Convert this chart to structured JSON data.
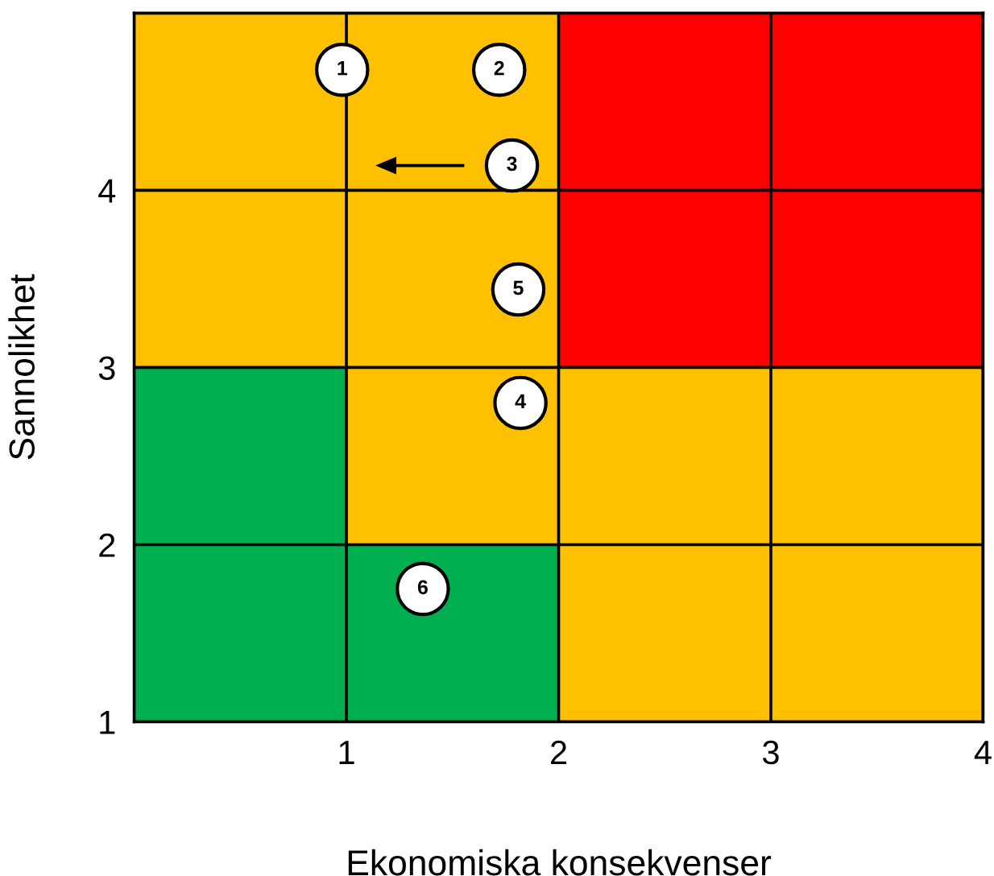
{
  "chart_data": {
    "type": "scatter",
    "xlabel": "Ekonomiska konsekvenser",
    "ylabel": "Sannolikhet",
    "series": [
      {
        "color": "#ffffff",
        "x": [
          0.98,
          1.72,
          1.78,
          1.82,
          1.81,
          1.36
        ],
        "values": [
          4.68,
          4.68,
          4.14,
          2.8,
          3.44,
          1.75
        ]
      }
    ],
    "annotations": [
      {
        "text": "1",
        "x": 0.98,
        "y": 4.68
      },
      {
        "text": "2",
        "x": 1.72,
        "y": 4.68
      },
      {
        "text": "3",
        "x": 1.78,
        "y": 4.14
      },
      {
        "text": "4",
        "x": 1.82,
        "y": 2.8
      },
      {
        "text": "5",
        "x": 1.81,
        "y": 3.44
      },
      {
        "text": "6",
        "x": 1.36,
        "y": 1.75
      }
    ],
    "xlim": [
      0,
      4
    ],
    "ylim": [
      1,
      5
    ],
    "xticks": [
      1,
      2,
      3,
      4
    ],
    "yticks": [
      1,
      2,
      3,
      4
    ],
    "grid": true,
    "marker": "circle"
  }
}
